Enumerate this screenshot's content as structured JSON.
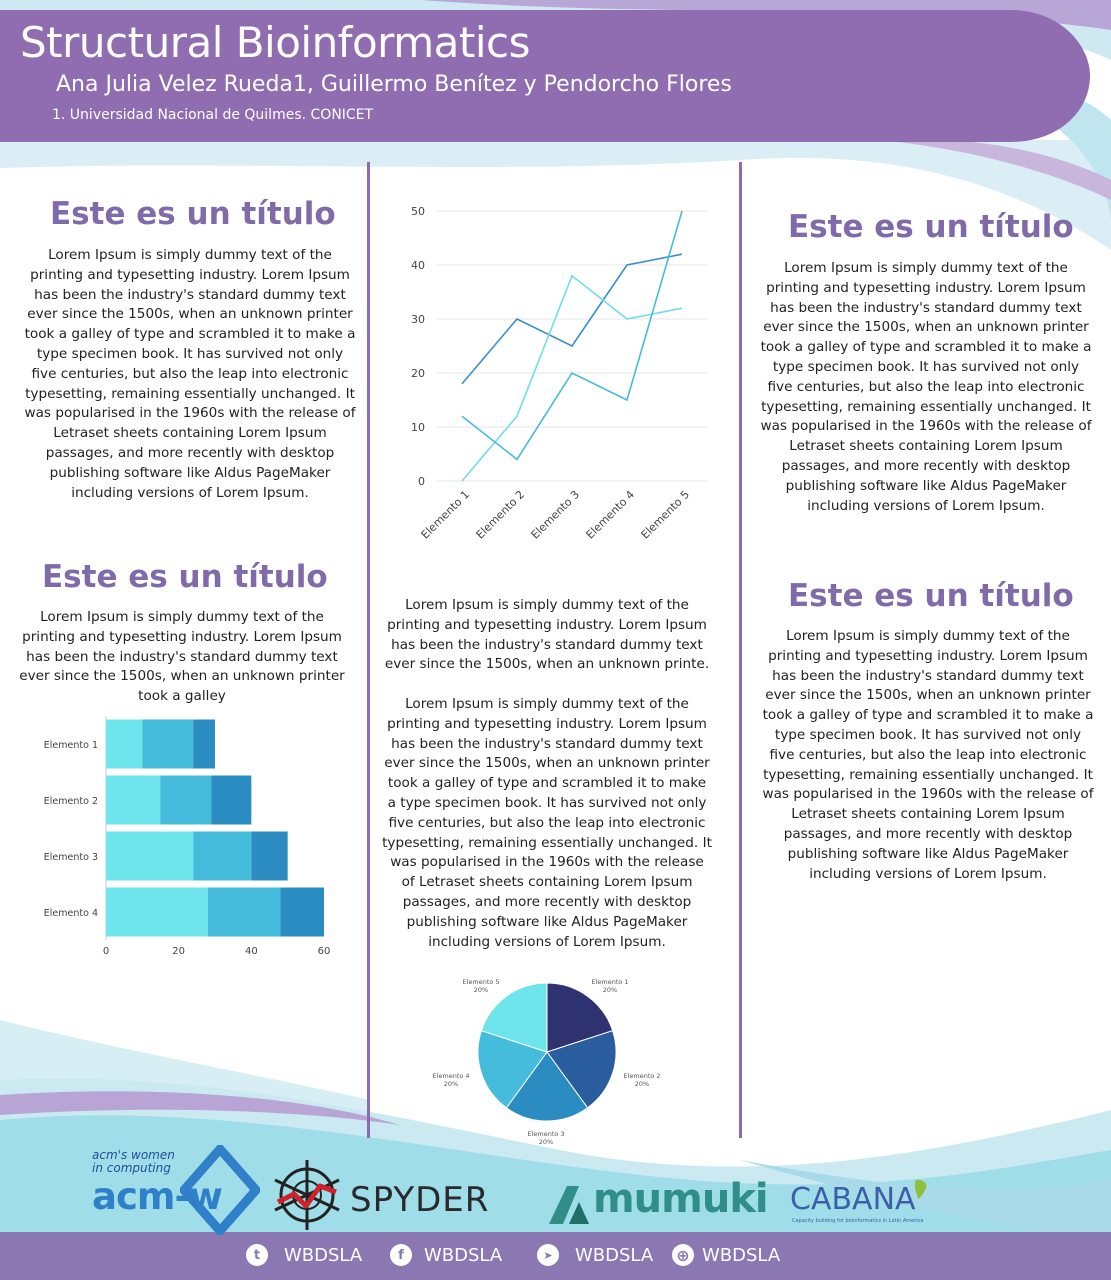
{
  "header": {
    "title": "Structural Bioinformatics",
    "authors": "Ana Julia Velez Rueda1, Guillermo Benítez y Pendorcho Flores",
    "affiliation": "1. Universidad Nacional de Quilmes. CONICET"
  },
  "sections": [
    {
      "title": "Este es un título",
      "body": "Lorem Ipsum is simply dummy text of the printing and typesetting industry. Lorem Ipsum has been the industry's standard dummy text ever since the 1500s, when an unknown printer took a galley of type and scrambled it to make a type specimen book. It has survived not only five centuries, but also the leap into electronic typesetting, remaining essentially unchanged. It was popularised in the 1960s with the release of Letraset sheets containing Lorem Ipsum passages, and more recently with desktop publishing software like Aldus PageMaker including versions of Lorem Ipsum."
    },
    {
      "title": "Este es un título",
      "body": "Lorem Ipsum is simply dummy text of the printing and typesetting industry. Lorem Ipsum has been the industry's standard dummy text ever since the 1500s, when an unknown printer took a galley"
    },
    {
      "title": "",
      "body": "Lorem Ipsum is simply dummy text of the printing and typesetting industry. Lorem Ipsum has been the industry's standard dummy text ever since the 1500s, when an unknown printe."
    },
    {
      "title": "",
      "body": "Lorem Ipsum is simply dummy text of the printing and typesetting industry. Lorem Ipsum has been the industry's standard dummy text ever since the 1500s, when an unknown printer took a galley of type and scrambled it to make a type specimen book. It has survived not only five centuries, but also the leap into electronic typesetting, remaining essentially unchanged. It was popularised in the 1960s with the release of Letraset sheets containing Lorem Ipsum passages, and more recently with desktop publishing software like Aldus PageMaker including versions of Lorem Ipsum."
    },
    {
      "title": "Este es un título",
      "body": "Lorem Ipsum is simply dummy text of the printing and typesetting industry. Lorem Ipsum has been the industry's standard dummy text ever since the 1500s, when an unknown printer took a galley of type and scrambled it to make a type specimen book. It has survived not only five centuries, but also the leap into electronic typesetting, remaining essentially unchanged. It was popularised in the 1960s with the release of Letraset sheets containing Lorem Ipsum passages, and more recently with desktop publishing software like Aldus PageMaker including versions of Lorem Ipsum."
    },
    {
      "title": "Este es un título",
      "body": "Lorem Ipsum is simply dummy text of the printing and typesetting industry. Lorem Ipsum has been the industry's standard dummy text ever since the 1500s, when an unknown printer took a galley of type and scrambled it to make a type specimen book. It has survived not only five centuries, but also the leap into electronic typesetting, remaining essentially unchanged. It was popularised in the 1960s with the release of Letraset sheets containing Lorem Ipsum passages, and more recently with desktop publishing software like Aldus PageMaker including versions of Lorem Ipsum."
    }
  ],
  "colors": {
    "header": "#8f6db0",
    "title_text": "#7f6aaa",
    "divider": "#8a6cb0",
    "teal_light": "#6ee4ec",
    "teal_mid": "#45bcdc",
    "teal_dark": "#2a8cc0"
  },
  "chart_data": [
    {
      "type": "line",
      "categories": [
        "Elemento 1",
        "Elemento 2",
        "Elemento 3",
        "Elemento 4",
        "Elemento 5"
      ],
      "yticks": [
        "0",
        "10",
        "20",
        "30",
        "40",
        "50"
      ],
      "ylim": [
        0,
        50
      ],
      "grid": true,
      "series": [
        {
          "values": [
            18,
            30,
            25,
            40,
            42
          ],
          "color": "#3a8fc8"
        },
        {
          "values": [
            0,
            12,
            38,
            30,
            32
          ],
          "color": "#72dde8"
        },
        {
          "values": [
            12,
            4,
            20,
            15,
            50
          ],
          "color": "#45bcdc"
        }
      ]
    },
    {
      "type": "bar",
      "orientation": "horizontal",
      "stacked": true,
      "categories": [
        "Elemento 1",
        "Elemento 2",
        "Elemento 3",
        "Elemento 4"
      ],
      "xticks": [
        "0",
        "20",
        "40",
        "60"
      ],
      "xlim": [
        0,
        60
      ],
      "series": [
        {
          "values": [
            10,
            15,
            24,
            28
          ],
          "color": "#6ee4ec"
        },
        {
          "values": [
            14,
            14,
            16,
            20
          ],
          "color": "#45bcdc"
        },
        {
          "values": [
            6,
            11,
            10,
            12
          ],
          "color": "#2a8cc0"
        }
      ]
    },
    {
      "type": "pie",
      "slices": [
        {
          "label": "Elemento 1",
          "pct_label": "20%",
          "value": 20,
          "color": "#2e3270"
        },
        {
          "label": "Elemento 2",
          "pct_label": "20%",
          "value": 20,
          "color": "#2a5d9e"
        },
        {
          "label": "Elemento 3",
          "pct_label": "20%",
          "value": 20,
          "color": "#2a8cc0"
        },
        {
          "label": "Elemento 4",
          "pct_label": "20%",
          "value": 20,
          "color": "#45bcdc"
        },
        {
          "label": "Elemento 5",
          "pct_label": "20%",
          "value": 20,
          "color": "#6ee4ec"
        }
      ]
    }
  ],
  "logos": {
    "acmw_tagline": "acm's women in computing",
    "acmw": "acm-w",
    "spyder": "SPYDER",
    "mumuki": "mumuki",
    "cabana": "CABANA",
    "cabana_tagline": "Capacity building for bioinformatics in Latin America"
  },
  "social": [
    {
      "icon": "twitter-icon",
      "glyph": "t",
      "label": "WBDSLA"
    },
    {
      "icon": "facebook-icon",
      "glyph": "f",
      "label": "WBDSLA"
    },
    {
      "icon": "telegram-icon",
      "glyph": "➤",
      "label": "WBDSLA"
    },
    {
      "icon": "globe-icon",
      "glyph": "⊕",
      "label": "WBDSLA"
    }
  ]
}
